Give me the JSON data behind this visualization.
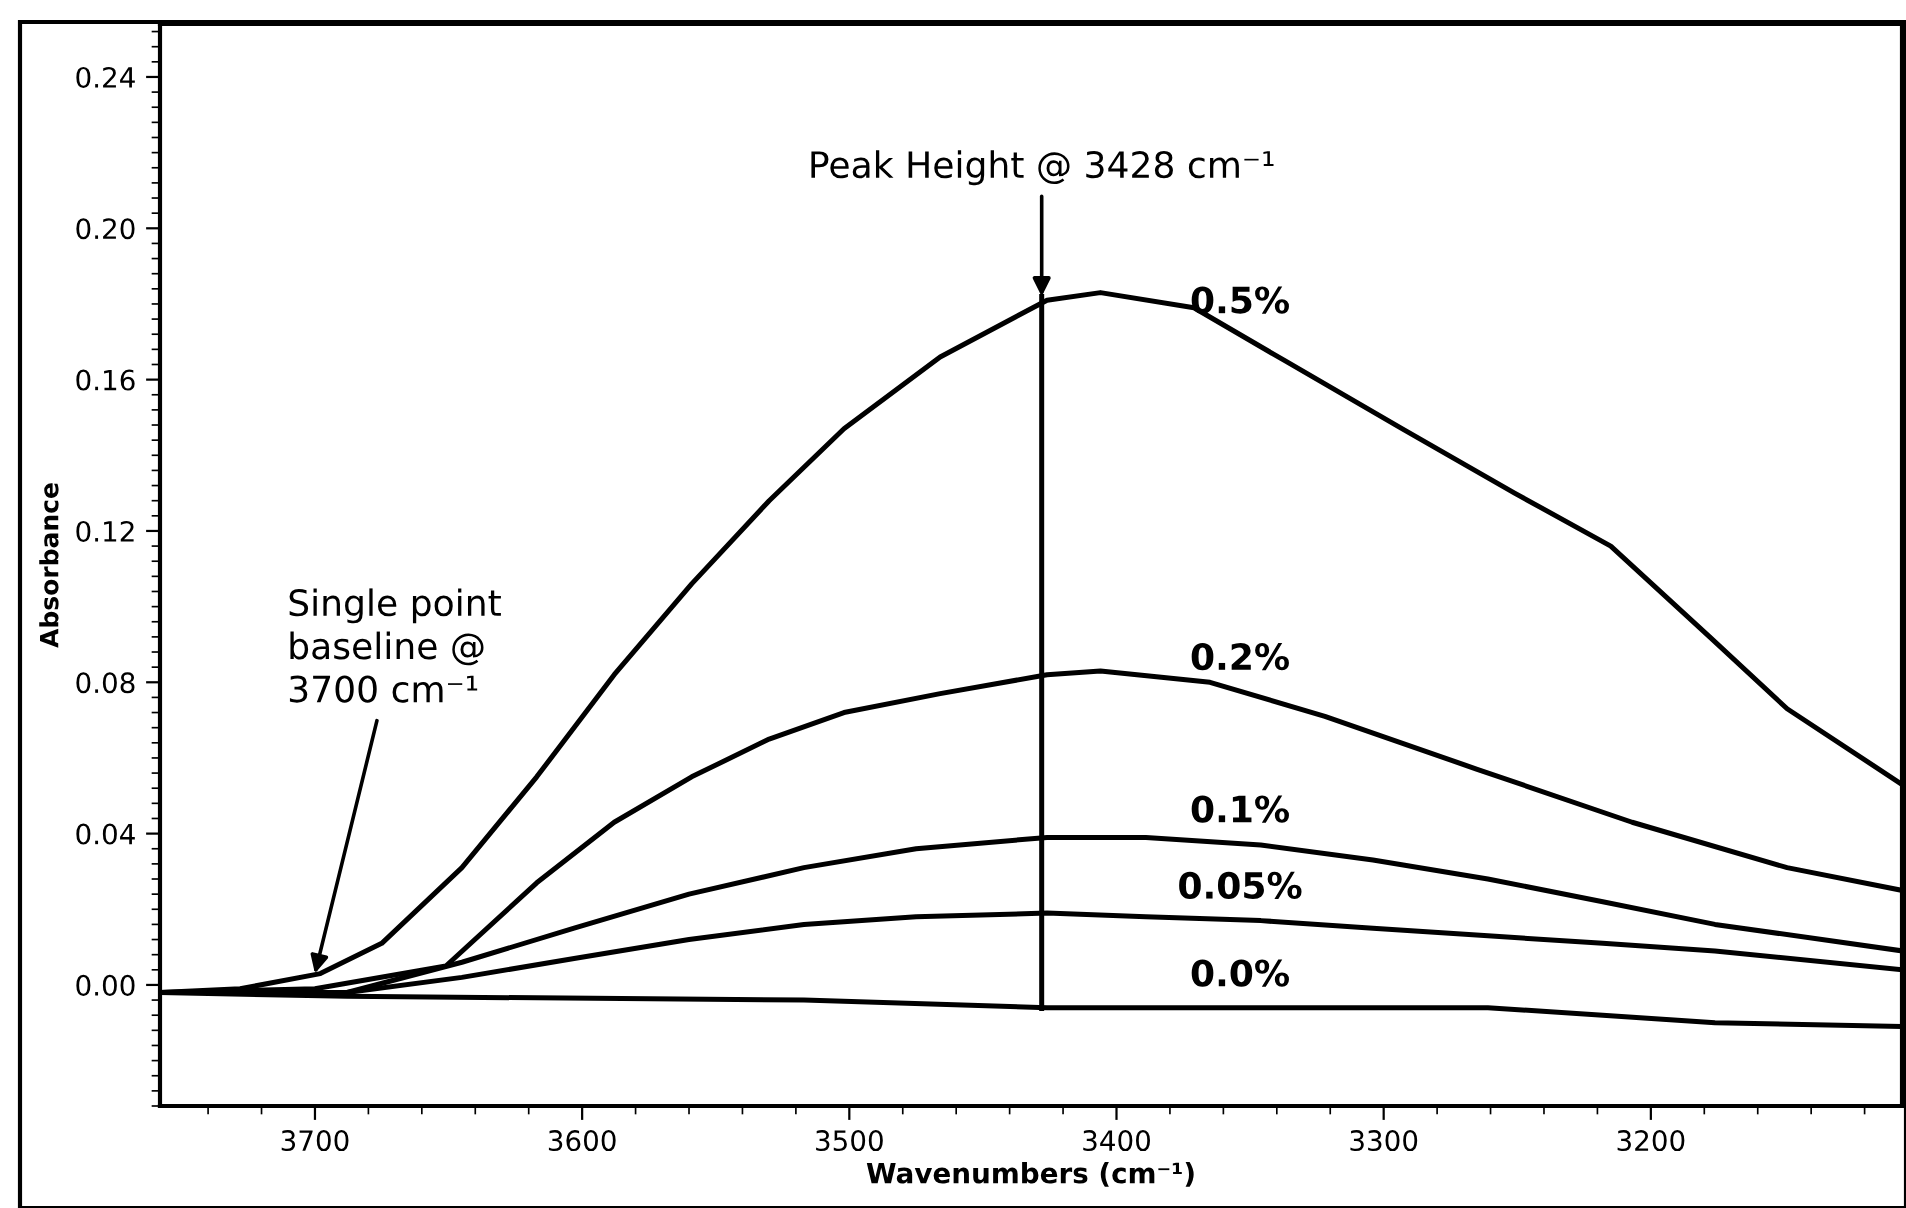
{
  "chart_data": {
    "type": "line",
    "xlabel": "Wavenumbers (cm⁻¹)",
    "ylabel": "Absorbance",
    "xlim": [
      3758,
      3106
    ],
    "ylim": [
      -0.032,
      0.254
    ],
    "xticks": [
      3700,
      3600,
      3500,
      3400,
      3300,
      3200
    ],
    "yticks": [
      {
        "value": 0,
        "label": "0.00"
      },
      0.04,
      0.08,
      0.12,
      0.16,
      {
        "value": 0.2,
        "label": "0.20"
      },
      0.24
    ],
    "grid": false,
    "legend": false,
    "marker": "none",
    "line_style": "solid",
    "series": [
      {
        "name": "0.5%",
        "color": "#000000",
        "x": [
          3758,
          3728,
          3698,
          3675,
          3645,
          3617,
          3588,
          3559,
          3530,
          3502,
          3466,
          3426,
          3406,
          3371,
          3337,
          3293,
          3251,
          3215,
          3178,
          3149,
          3106
        ],
        "values": [
          -0.002,
          -0.001,
          0.003,
          0.011,
          0.031,
          0.055,
          0.082,
          0.106,
          0.128,
          0.147,
          0.166,
          0.181,
          0.183,
          0.179,
          0.165,
          0.147,
          0.13,
          0.116,
          0.092,
          0.073,
          0.053
        ]
      },
      {
        "name": "0.2%",
        "color": "#000000",
        "x": [
          3758,
          3700,
          3651,
          3617,
          3588,
          3559,
          3530,
          3502,
          3466,
          3426,
          3406,
          3365,
          3322,
          3265,
          3207,
          3149,
          3106
        ],
        "values": [
          -0.002,
          -0.001,
          0.005,
          0.027,
          0.043,
          0.055,
          0.065,
          0.072,
          0.077,
          0.082,
          0.083,
          0.08,
          0.071,
          0.057,
          0.043,
          0.031,
          0.025
        ]
      },
      {
        "name": "0.1%",
        "color": "#000000",
        "x": [
          3758,
          3688,
          3645,
          3603,
          3560,
          3517,
          3475,
          3426,
          3389,
          3346,
          3304,
          3261,
          3218,
          3176,
          3106
        ],
        "values": [
          -0.002,
          -0.002,
          0.006,
          0.015,
          0.024,
          0.031,
          0.036,
          0.039,
          0.039,
          0.037,
          0.033,
          0.028,
          0.022,
          0.016,
          0.009
        ]
      },
      {
        "name": "0.05%",
        "color": "#000000",
        "x": [
          3758,
          3688,
          3645,
          3603,
          3560,
          3517,
          3475,
          3426,
          3389,
          3346,
          3304,
          3261,
          3218,
          3176,
          3106
        ],
        "values": [
          -0.002,
          -0.002,
          0.002,
          0.007,
          0.012,
          0.016,
          0.018,
          0.019,
          0.018,
          0.017,
          0.015,
          0.013,
          0.011,
          0.009,
          0.004
        ]
      },
      {
        "name": "0.0%",
        "color": "#000000",
        "x": [
          3758,
          3688,
          3517,
          3426,
          3346,
          3261,
          3218,
          3176,
          3106
        ],
        "values": [
          -0.002,
          -0.003,
          -0.004,
          -0.006,
          -0.006,
          -0.006,
          -0.008,
          -0.01,
          -0.011
        ]
      }
    ],
    "ref_lines": [
      {
        "axis": "x",
        "value": 3428,
        "color": "#000000",
        "line_style": "solid"
      }
    ],
    "annotations": [
      {
        "text": "Single point\nbaseline @\n3700 cm⁻¹",
        "x": 3700,
        "y": 0.003
      },
      {
        "text": "Peak Height @ 3428 cm⁻¹",
        "x": 3428,
        "y": 0.182
      }
    ]
  }
}
